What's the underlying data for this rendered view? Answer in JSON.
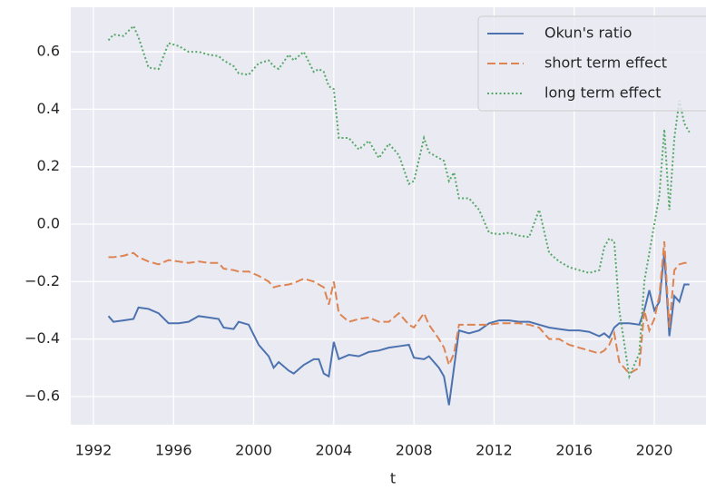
{
  "chart_data": {
    "type": "line",
    "x_label": "t",
    "x": [
      1992.75,
      1993.0,
      1993.5,
      1994.0,
      1994.25,
      1994.75,
      1995.25,
      1995.75,
      1996.25,
      1996.75,
      1997.25,
      1997.75,
      1998.25,
      1998.5,
      1999.0,
      1999.25,
      1999.75,
      2000.25,
      2000.75,
      2001.0,
      2001.25,
      2001.75,
      2002.0,
      2002.5,
      2003.0,
      2003.25,
      2003.5,
      2003.75,
      2004.0,
      2004.25,
      2004.75,
      2005.25,
      2005.75,
      2006.25,
      2006.75,
      2007.25,
      2007.75,
      2008.0,
      2008.5,
      2008.75,
      2009.25,
      2009.5,
      2009.75,
      2010.0,
      2010.25,
      2010.75,
      2011.25,
      2011.75,
      2012.25,
      2012.75,
      2013.25,
      2013.75,
      2014.25,
      2014.75,
      2015.25,
      2015.75,
      2016.25,
      2016.75,
      2017.25,
      2017.5,
      2017.75,
      2018.0,
      2018.25,
      2018.75,
      2019.25,
      2019.5,
      2019.75,
      2020.0,
      2020.25,
      2020.5,
      2020.75,
      2021.0,
      2021.25,
      2021.5,
      2021.75
    ],
    "series": [
      {
        "name": "Okun's ratio",
        "color": "#4c72b0",
        "dash": "solid",
        "values": [
          -0.32,
          -0.34,
          -0.335,
          -0.33,
          -0.29,
          -0.295,
          -0.31,
          -0.345,
          -0.345,
          -0.34,
          -0.32,
          -0.325,
          -0.33,
          -0.36,
          -0.365,
          -0.34,
          -0.35,
          -0.42,
          -0.46,
          -0.5,
          -0.48,
          -0.51,
          -0.52,
          -0.49,
          -0.47,
          -0.47,
          -0.52,
          -0.53,
          -0.41,
          -0.47,
          -0.455,
          -0.46,
          -0.445,
          -0.44,
          -0.43,
          -0.425,
          -0.42,
          -0.465,
          -0.47,
          -0.46,
          -0.5,
          -0.53,
          -0.63,
          -0.5,
          -0.37,
          -0.38,
          -0.37,
          -0.345,
          -0.335,
          -0.335,
          -0.34,
          -0.34,
          -0.35,
          -0.36,
          -0.365,
          -0.37,
          -0.37,
          -0.375,
          -0.39,
          -0.38,
          -0.395,
          -0.36,
          -0.345,
          -0.345,
          -0.35,
          -0.3,
          -0.23,
          -0.3,
          -0.27,
          -0.1,
          -0.39,
          -0.25,
          -0.27,
          -0.21,
          -0.21
        ]
      },
      {
        "name": "short term effect",
        "color": "#dd8452",
        "dash": "dashed",
        "values": [
          -0.115,
          -0.115,
          -0.11,
          -0.1,
          -0.115,
          -0.13,
          -0.14,
          -0.125,
          -0.13,
          -0.135,
          -0.13,
          -0.135,
          -0.135,
          -0.155,
          -0.16,
          -0.165,
          -0.165,
          -0.18,
          -0.2,
          -0.22,
          -0.215,
          -0.21,
          -0.205,
          -0.19,
          -0.2,
          -0.21,
          -0.22,
          -0.28,
          -0.2,
          -0.31,
          -0.34,
          -0.33,
          -0.325,
          -0.34,
          -0.34,
          -0.31,
          -0.35,
          -0.36,
          -0.31,
          -0.35,
          -0.4,
          -0.43,
          -0.49,
          -0.45,
          -0.35,
          -0.35,
          -0.35,
          -0.35,
          -0.345,
          -0.345,
          -0.345,
          -0.35,
          -0.36,
          -0.4,
          -0.4,
          -0.42,
          -0.43,
          -0.44,
          -0.45,
          -0.44,
          -0.42,
          -0.38,
          -0.48,
          -0.52,
          -0.5,
          -0.3,
          -0.37,
          -0.33,
          -0.25,
          -0.06,
          -0.36,
          -0.16,
          -0.14,
          -0.135,
          -0.135
        ]
      },
      {
        "name": "long term effect",
        "color": "#55a868",
        "dash": "dotted",
        "values": [
          0.64,
          0.66,
          0.655,
          0.69,
          0.65,
          0.545,
          0.54,
          0.63,
          0.62,
          0.6,
          0.6,
          0.59,
          0.585,
          0.57,
          0.55,
          0.525,
          0.52,
          0.56,
          0.57,
          0.55,
          0.54,
          0.59,
          0.57,
          0.6,
          0.53,
          0.54,
          0.53,
          0.48,
          0.47,
          0.3,
          0.3,
          0.26,
          0.29,
          0.23,
          0.28,
          0.24,
          0.14,
          0.15,
          0.3,
          0.25,
          0.23,
          0.22,
          0.15,
          0.18,
          0.09,
          0.09,
          0.05,
          -0.03,
          -0.035,
          -0.03,
          -0.04,
          -0.045,
          0.05,
          -0.1,
          -0.13,
          -0.15,
          -0.16,
          -0.17,
          -0.16,
          -0.08,
          -0.05,
          -0.06,
          -0.3,
          -0.53,
          -0.45,
          -0.2,
          -0.1,
          0.0,
          0.1,
          0.33,
          0.05,
          0.3,
          0.43,
          0.35,
          0.32
        ]
      }
    ],
    "xlim": [
      1990.87,
      2022.58
    ],
    "ylim": [
      -0.698,
      0.755
    ],
    "xticks": [
      1992,
      1996,
      2000,
      2004,
      2008,
      2012,
      2016,
      2020
    ],
    "yticks": [
      {
        "value": -0.6,
        "label": "−0.6"
      },
      {
        "value": -0.4,
        "label": "−0.4"
      },
      {
        "value": -0.2,
        "label": "−0.2"
      },
      {
        "value": 0,
        "label": "0.0"
      },
      0.2,
      0.4,
      0.6
    ],
    "grid": true,
    "legend": "upper right"
  }
}
